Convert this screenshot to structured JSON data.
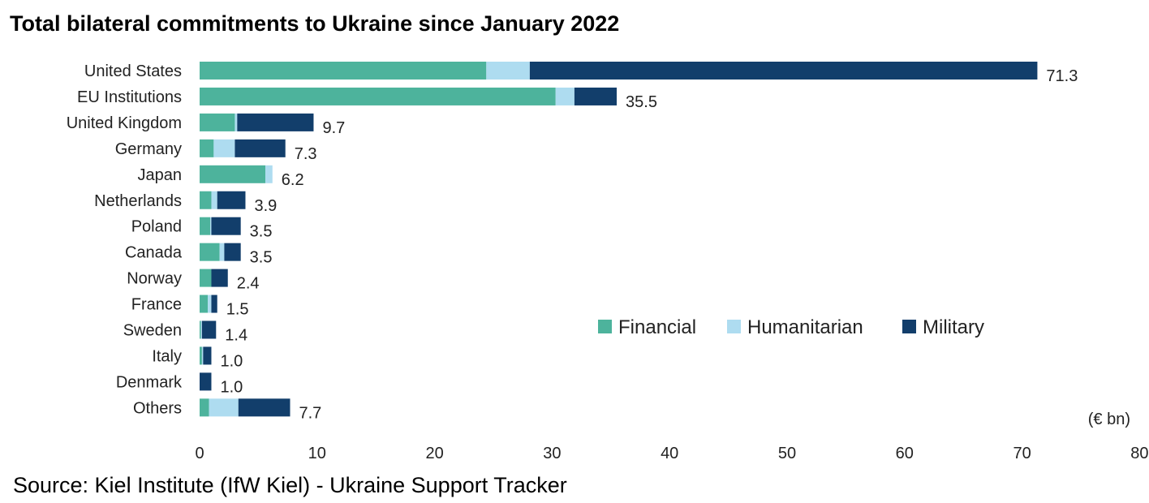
{
  "chart_data": {
    "type": "bar",
    "orientation": "horizontal",
    "stacked": true,
    "title": "Total bilateral commitments to Ukraine since January 2022",
    "unit_label": "(€ bn)",
    "xlim": [
      0,
      80
    ],
    "xticks": [
      0,
      10,
      20,
      30,
      40,
      50,
      60,
      70,
      80
    ],
    "categories": [
      "United States",
      "EU Institutions",
      "United Kingdom",
      "Germany",
      "Japan",
      "Netherlands",
      "Poland",
      "Canada",
      "Norway",
      "France",
      "Sweden",
      "Italy",
      "Denmark",
      "Others"
    ],
    "totals": [
      "71.3",
      "35.5",
      "9.7",
      "7.3",
      "6.2",
      "3.9",
      "3.5",
      "3.5",
      "2.4",
      "1.5",
      "1.4",
      "1.0",
      "1.0",
      "7.7"
    ],
    "series": [
      {
        "name": "Financial",
        "color": "#4db39c",
        "values": [
          24.4,
          30.3,
          3.0,
          1.2,
          5.6,
          1.0,
          0.9,
          1.7,
          1.0,
          0.7,
          0.1,
          0.2,
          0.0,
          0.8
        ]
      },
      {
        "name": "Humanitarian",
        "color": "#aedcf0",
        "values": [
          3.7,
          1.6,
          0.2,
          1.8,
          0.6,
          0.5,
          0.1,
          0.4,
          0.0,
          0.3,
          0.1,
          0.1,
          0.0,
          2.5
        ]
      },
      {
        "name": "Military",
        "color": "#123e6b",
        "values": [
          43.2,
          3.6,
          6.5,
          4.3,
          0.0,
          2.4,
          2.5,
          1.4,
          1.4,
          0.5,
          1.2,
          0.7,
          1.0,
          4.4
        ]
      }
    ],
    "legend_position": "center-right",
    "grid": false
  },
  "header": {
    "title": "Total bilateral commitments to Ukraine since January 2022"
  },
  "footer": {
    "source": "Source: Kiel Institute (IfW Kiel) - Ukraine Support Tracker"
  }
}
